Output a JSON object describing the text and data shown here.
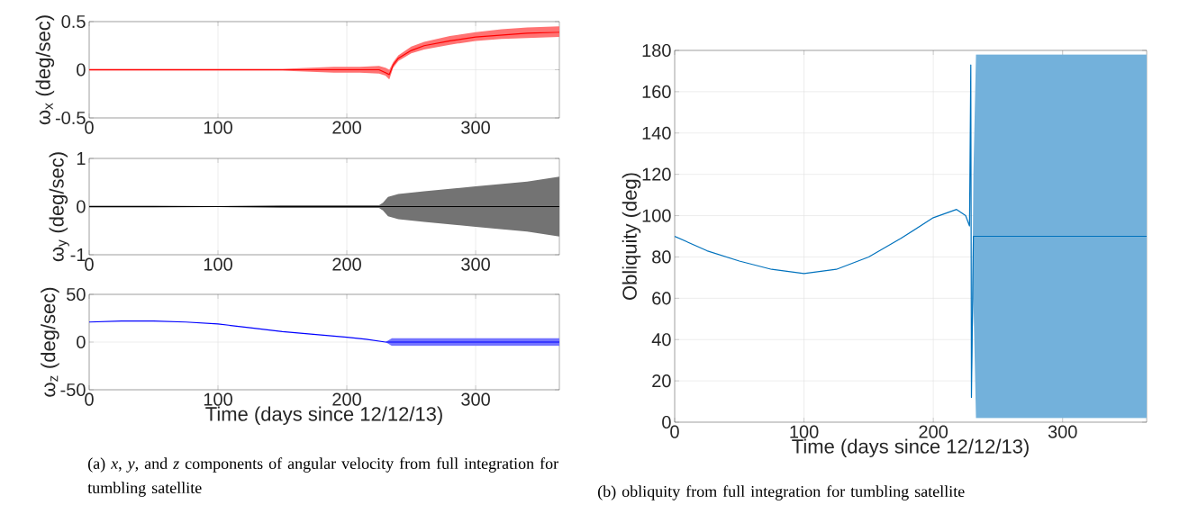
{
  "chart_data": [
    {
      "type": "line",
      "ylabel": "ω$_{x}$ (deg/sec)",
      "xlim": [
        0,
        365
      ],
      "ylim": [
        -0.5,
        0.5
      ],
      "xticks": [
        0,
        100,
        200,
        300
      ],
      "yticks": [
        -0.5,
        0,
        0.5
      ],
      "grid": true,
      "x": [
        0,
        50,
        100,
        150,
        190,
        210,
        225,
        230,
        233,
        236,
        240,
        250,
        260,
        280,
        300,
        320,
        340,
        365
      ],
      "series": [
        {
          "color": "#ff0000",
          "values": [
            0,
            0,
            0,
            0,
            0,
            0,
            0,
            -0.03,
            -0.05,
            0.05,
            0.12,
            0.2,
            0.25,
            0.3,
            0.34,
            0.36,
            0.38,
            0.39
          ],
          "lower": [
            -0.01,
            -0.01,
            -0.01,
            -0.01,
            -0.03,
            -0.03,
            -0.04,
            -0.06,
            -0.1,
            0.02,
            0.09,
            0.17,
            0.21,
            0.26,
            0.3,
            0.32,
            0.33,
            0.34
          ],
          "upper": [
            0.01,
            0.01,
            0.01,
            0.01,
            0.03,
            0.03,
            0.04,
            0.02,
            0.0,
            0.08,
            0.15,
            0.24,
            0.29,
            0.35,
            0.39,
            0.42,
            0.44,
            0.45
          ]
        }
      ]
    },
    {
      "type": "line",
      "ylabel": "ω$_{y}$ (deg/sec)",
      "xlim": [
        0,
        365
      ],
      "ylim": [
        -1,
        1
      ],
      "xticks": [
        0,
        100,
        200,
        300
      ],
      "yticks": [
        -1,
        0,
        1
      ],
      "grid": true,
      "x": [
        0,
        50,
        100,
        150,
        200,
        225,
        228,
        232,
        240,
        260,
        300,
        340,
        365
      ],
      "series": [
        {
          "color": "#000000",
          "values": [
            0,
            0,
            0,
            0,
            0,
            0,
            0,
            0,
            0,
            0,
            0,
            0,
            0
          ],
          "lower": [
            -0.02,
            -0.02,
            -0.01,
            -0.03,
            -0.03,
            -0.03,
            -0.08,
            -0.2,
            -0.26,
            -0.32,
            -0.42,
            -0.52,
            -0.62
          ],
          "upper": [
            0.02,
            0.02,
            0.01,
            0.03,
            0.03,
            0.03,
            0.08,
            0.2,
            0.26,
            0.32,
            0.42,
            0.52,
            0.62
          ]
        }
      ]
    },
    {
      "type": "line",
      "xlabel": "Time (days since 12/12/13)",
      "ylabel": "ω$_{z}$ (deg/sec)",
      "xlim": [
        0,
        365
      ],
      "ylim": [
        -50,
        50
      ],
      "xticks": [
        0,
        100,
        200,
        300
      ],
      "yticks": [
        -50,
        0,
        50
      ],
      "grid": true,
      "annotations": [
        "(a) *x*, *y*, and *z* components of angular velocity from full integration for tumbling satellite"
      ],
      "x": [
        0,
        25,
        50,
        75,
        100,
        125,
        150,
        175,
        200,
        215,
        230,
        235,
        260,
        300,
        340,
        365
      ],
      "series": [
        {
          "color": "#0000ff",
          "values": [
            21,
            22,
            22,
            21,
            19,
            15,
            11,
            8,
            5,
            3,
            0,
            0,
            0,
            0,
            0,
            0
          ],
          "lower": [
            21,
            22,
            22,
            21,
            19,
            15,
            11,
            8,
            5,
            3,
            0,
            -4,
            -4,
            -4,
            -4,
            -4
          ],
          "upper": [
            21,
            22,
            22,
            21,
            19,
            15,
            11,
            8,
            5,
            3,
            0,
            4,
            4,
            4,
            4,
            4
          ]
        }
      ]
    },
    {
      "type": "line",
      "xlabel": "Time (days since 12/12/13)",
      "ylabel": "Obliquity (deg)",
      "xlim": [
        0,
        365
      ],
      "ylim": [
        0,
        180
      ],
      "xticks": [
        0,
        100,
        200,
        300
      ],
      "yticks": [
        0,
        20,
        40,
        60,
        80,
        100,
        120,
        140,
        160,
        180
      ],
      "grid": true,
      "annotations": [
        "(b) obliquity from full integration for tumbling satellite"
      ],
      "x": [
        0,
        25,
        50,
        75,
        100,
        125,
        150,
        175,
        200,
        218,
        225,
        228,
        229,
        229.5,
        231,
        233,
        260,
        300,
        340,
        365
      ],
      "series": [
        {
          "color": "#0072bd",
          "values": [
            90,
            83,
            78,
            74,
            72,
            74,
            80,
            89,
            99,
            103,
            100,
            95,
            173,
            12,
            90,
            90,
            90,
            90,
            90,
            90
          ],
          "lower": [
            90,
            83,
            78,
            74,
            72,
            74,
            80,
            89,
            99,
            103,
            100,
            95,
            173,
            12,
            60,
            2,
            2,
            2,
            2,
            2
          ],
          "upper": [
            90,
            83,
            78,
            74,
            72,
            74,
            80,
            89,
            99,
            103,
            100,
            95,
            173,
            12,
            120,
            178,
            178,
            178,
            178,
            178
          ]
        }
      ]
    }
  ]
}
